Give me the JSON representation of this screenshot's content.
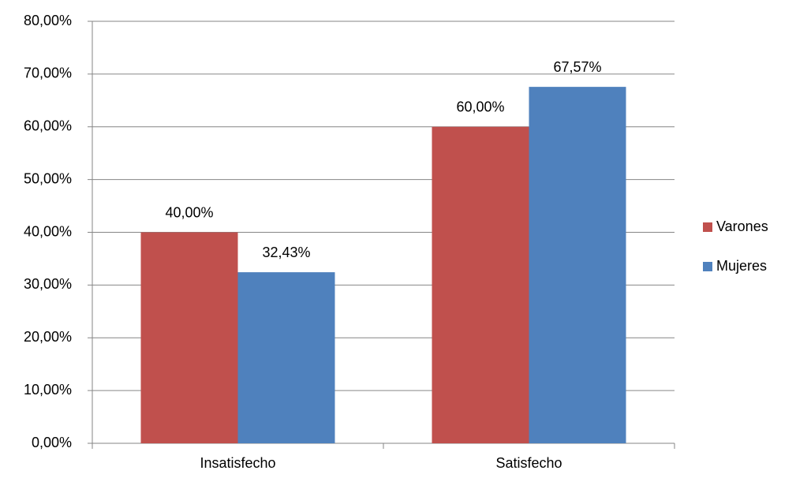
{
  "chart_data": {
    "type": "bar",
    "categories": [
      "Insatisfecho",
      "Satisfecho"
    ],
    "series": [
      {
        "name": "Varones",
        "color": "#c0504d",
        "values": [
          40,
          60
        ],
        "value_labels": [
          "40,00%",
          "60,00%"
        ]
      },
      {
        "name": "Mujeres",
        "color": "#4f81bd",
        "values": [
          32.43,
          67.57
        ],
        "value_labels": [
          "32,43%",
          "67,57%"
        ]
      }
    ],
    "ylim": [
      0,
      80
    ],
    "yticks": [
      {
        "value": 0,
        "label": "0,00%"
      },
      {
        "value": 10,
        "label": "10,00%"
      },
      {
        "value": 20,
        "label": "20,00%"
      },
      {
        "value": 30,
        "label": "30,00%"
      },
      {
        "value": 40,
        "label": "40,00%"
      },
      {
        "value": 50,
        "label": "50,00%"
      },
      {
        "value": 60,
        "label": "60,00%"
      },
      {
        "value": 70,
        "label": "70,00%"
      },
      {
        "value": 80,
        "label": "80,00%"
      }
    ],
    "grid": true,
    "legend": "right"
  }
}
